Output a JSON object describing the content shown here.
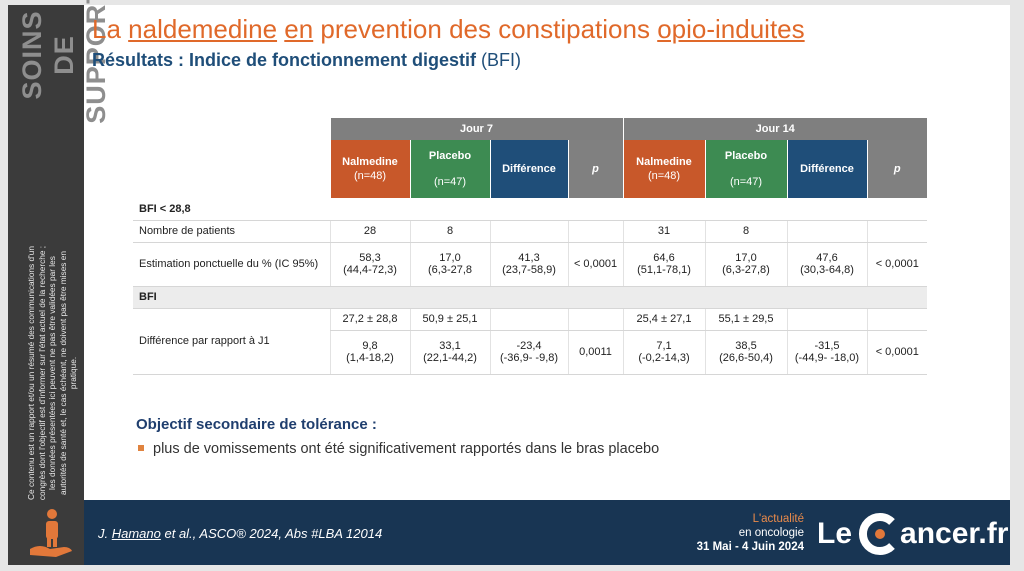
{
  "slide": {
    "sidebar": {
      "lines": [
        "SOINS",
        "DE SUPPORT"
      ],
      "disclaimer": "Ce contenu est un rapport et/ou un résumé des communications d'un congrès dont l'objectif est d'informer sur l'état actuel de la recherche ; les données présentées ici peuvent ne pas être validées par les autorités de santé et, le cas échéant, ne doivent pas être mises en pratique."
    },
    "title": [
      {
        "text": "La ",
        "underline": false
      },
      {
        "text": "naldemedine",
        "underline": true
      },
      {
        "text": " ",
        "underline": false
      },
      {
        "text": "en",
        "underline": true
      },
      {
        "text": " prevention des constipations ",
        "underline": false
      },
      {
        "text": "opio-induites",
        "underline": true
      }
    ],
    "subtitle": [
      {
        "text": "Résultats : Indice de fonctionnement digestif ",
        "bold": true
      },
      {
        "text": "(BFI)",
        "bold": false
      }
    ],
    "table": {
      "day_headers": [
        "Jour 7",
        "Jour 14"
      ],
      "columns": [
        {
          "name": "Nalmedine",
          "n": "(n=48)",
          "color": "#c8582a"
        },
        {
          "name": "Placebo",
          "n": "(n=47)",
          "color": "#3d8b52"
        },
        {
          "name": "Différence",
          "color": "#1f4e79"
        },
        {
          "name": "p",
          "color": "#808080"
        },
        {
          "name": "Nalmedine",
          "n": "(n=48)",
          "color": "#c8582a"
        },
        {
          "name": "Placebo",
          "n": "(n=47)",
          "color": "#3d8b52"
        },
        {
          "name": "Différence",
          "color": "#1f4e79"
        },
        {
          "name": "p",
          "color": "#808080"
        }
      ],
      "sections": [
        {
          "title": "BFI < 28,8",
          "rows": [
            {
              "label": "Nombre de patients",
              "subrows": [
                [
                  [
                    "28"
                  ],
                  [
                    "8"
                  ],
                  null,
                  null,
                  [
                    "31"
                  ],
                  [
                    "8"
                  ],
                  null,
                  null
                ]
              ]
            },
            {
              "label": "Estimation ponctuelle du % (IC 95%)",
              "subrows": [
                [
                  [
                    "58,3",
                    "(44,4-72,3)"
                  ],
                  [
                    "17,0",
                    "(6,3-27,8"
                  ],
                  [
                    "41,3",
                    "(23,7-58,9)"
                  ],
                  [
                    "< 0,0001"
                  ],
                  [
                    "64,6",
                    "(51,1-78,1)"
                  ],
                  [
                    "17,0",
                    "(6,3-27,8)"
                  ],
                  [
                    "47,6",
                    "(30,3-64,8)"
                  ],
                  [
                    "< 0,0001"
                  ]
                ]
              ]
            }
          ]
        },
        {
          "title": "BFI",
          "rows": [
            {
              "label": "Différence par rapport à J1",
              "subrows": [
                [
                  [
                    "27,2 ± 28,8"
                  ],
                  [
                    "50,9 ± 25,1"
                  ],
                  null,
                  null,
                  [
                    "25,4 ± 27,1"
                  ],
                  [
                    "55,1 ± 29,5"
                  ],
                  null,
                  null
                ],
                [
                  [
                    "9,8",
                    "(1,4-18,2)"
                  ],
                  [
                    "33,1",
                    "(22,1-44,2)"
                  ],
                  [
                    "-23,4",
                    "(-36,9- -9,8)"
                  ],
                  [
                    "0,0011"
                  ],
                  [
                    "7,1",
                    "(-0,2-14,3)"
                  ],
                  [
                    "38,5",
                    "(26,6-50,4)"
                  ],
                  [
                    "-31,5",
                    "(-44,9- -18,0)"
                  ],
                  [
                    "< 0,0001"
                  ]
                ]
              ]
            }
          ]
        }
      ]
    },
    "secondary": {
      "heading": "Objectif secondaire de tolérance :",
      "bullets": [
        "plus de vomissements ont été significativement rapportés dans le bras placebo"
      ]
    },
    "footer": {
      "citation": [
        {
          "text": "J. ",
          "underline": false
        },
        {
          "text": "Hamano",
          "underline": true
        },
        {
          "text": " et al., ASCO® 2024, Abs #LBA 12014",
          "underline": false
        }
      ],
      "tagline": [
        "L'actualité",
        "en oncologie"
      ],
      "dates": "31 Mai - 4 Juin 2024",
      "logo": {
        "left": "Le",
        "right": "ancer.fr"
      }
    }
  }
}
